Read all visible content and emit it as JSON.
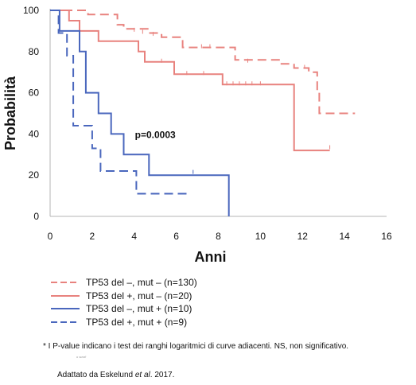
{
  "chart_data": {
    "type": "line",
    "subtype": "kaplan-meier",
    "xlabel": "Anni",
    "ylabel": "Probabilità",
    "xlim": [
      0,
      16
    ],
    "ylim": [
      0,
      100
    ],
    "xticks": [
      "0",
      "2",
      "4",
      "6",
      "8",
      "10",
      "12",
      "14",
      "16"
    ],
    "yticks": [
      "0",
      "20",
      "40",
      "60",
      "80",
      "100"
    ],
    "grid": false,
    "annotation": "p=0.0003",
    "series": [
      {
        "name": "TP53 del –, mut – (n=130)",
        "color": "#e8827e",
        "dashed": true,
        "points": [
          [
            0,
            100
          ],
          [
            1.8,
            100
          ],
          [
            1.8,
            98
          ],
          [
            3.2,
            98
          ],
          [
            3.2,
            93
          ],
          [
            3.5,
            93
          ],
          [
            3.5,
            91
          ],
          [
            4.7,
            91
          ],
          [
            4.7,
            89
          ],
          [
            5.3,
            89
          ],
          [
            5.3,
            87
          ],
          [
            6.3,
            87
          ],
          [
            6.3,
            82
          ],
          [
            8.8,
            82
          ],
          [
            8.8,
            76
          ],
          [
            11.0,
            76
          ],
          [
            11.0,
            74
          ],
          [
            11.6,
            74
          ],
          [
            11.6,
            72
          ],
          [
            12.3,
            72
          ],
          [
            12.3,
            70
          ],
          [
            12.7,
            70
          ],
          [
            12.7,
            60
          ],
          [
            12.8,
            60
          ],
          [
            12.8,
            50
          ],
          [
            14.5,
            50
          ]
        ],
        "censors": [
          [
            4.0,
            90
          ],
          [
            4.4,
            89
          ],
          [
            4.9,
            88
          ],
          [
            5.3,
            87
          ],
          [
            7.2,
            82
          ],
          [
            7.6,
            82
          ],
          [
            9.4,
            75
          ],
          [
            12.1,
            72
          ]
        ]
      },
      {
        "name": "TP53 del +, mut – (n=20)",
        "color": "#e8827e",
        "dashed": false,
        "points": [
          [
            0,
            100
          ],
          [
            0.9,
            100
          ],
          [
            0.9,
            95
          ],
          [
            1.4,
            95
          ],
          [
            1.4,
            90
          ],
          [
            2.3,
            90
          ],
          [
            2.3,
            85
          ],
          [
            4.2,
            85
          ],
          [
            4.2,
            80
          ],
          [
            4.5,
            80
          ],
          [
            4.5,
            75
          ],
          [
            5.9,
            75
          ],
          [
            5.9,
            69
          ],
          [
            8.2,
            69
          ],
          [
            8.2,
            64
          ],
          [
            11.6,
            64
          ],
          [
            11.6,
            32
          ],
          [
            13.3,
            32
          ]
        ],
        "censors": [
          [
            5.3,
            75
          ],
          [
            6.5,
            69
          ],
          [
            7.3,
            69
          ],
          [
            8.4,
            64
          ],
          [
            8.7,
            64
          ],
          [
            9.0,
            64
          ],
          [
            9.3,
            64
          ],
          [
            9.6,
            64
          ],
          [
            10.0,
            64
          ],
          [
            13.3,
            33
          ]
        ]
      },
      {
        "name": "TP53 del –, mut + (n=10)",
        "color": "#4a67bd",
        "dashed": false,
        "points": [
          [
            0,
            100
          ],
          [
            0.45,
            100
          ],
          [
            0.45,
            90
          ],
          [
            1.4,
            90
          ],
          [
            1.4,
            80
          ],
          [
            1.7,
            80
          ],
          [
            1.7,
            60
          ],
          [
            2.3,
            60
          ],
          [
            2.3,
            50
          ],
          [
            2.9,
            50
          ],
          [
            2.9,
            40
          ],
          [
            3.5,
            40
          ],
          [
            3.5,
            30
          ],
          [
            4.7,
            30
          ],
          [
            4.7,
            20
          ],
          [
            8.5,
            20
          ],
          [
            8.5,
            0
          ]
        ],
        "censors": [
          [
            6.8,
            21
          ]
        ]
      },
      {
        "name": "TP53 del +, mut + (n=9)",
        "color": "#4a67bd",
        "dashed": true,
        "points": [
          [
            0,
            100
          ],
          [
            0.4,
            100
          ],
          [
            0.4,
            89
          ],
          [
            0.8,
            89
          ],
          [
            0.8,
            78
          ],
          [
            1.1,
            78
          ],
          [
            1.1,
            44
          ],
          [
            2.0,
            44
          ],
          [
            2.0,
            33
          ],
          [
            2.4,
            33
          ],
          [
            2.4,
            22
          ],
          [
            4.1,
            22
          ],
          [
            4.1,
            11
          ],
          [
            6.5,
            11
          ]
        ],
        "censors": []
      }
    ]
  },
  "footnote": "* I P-value indicano i test dei ranghi logaritmici di curve adiacenti. NS, non significativo.",
  "faint_text": "ᵃ ˢᵉᵐᵃⁱ",
  "source": {
    "prefix": "Adattato da Eskelund ",
    "italic": "et al",
    "suffix": ". 2017."
  }
}
